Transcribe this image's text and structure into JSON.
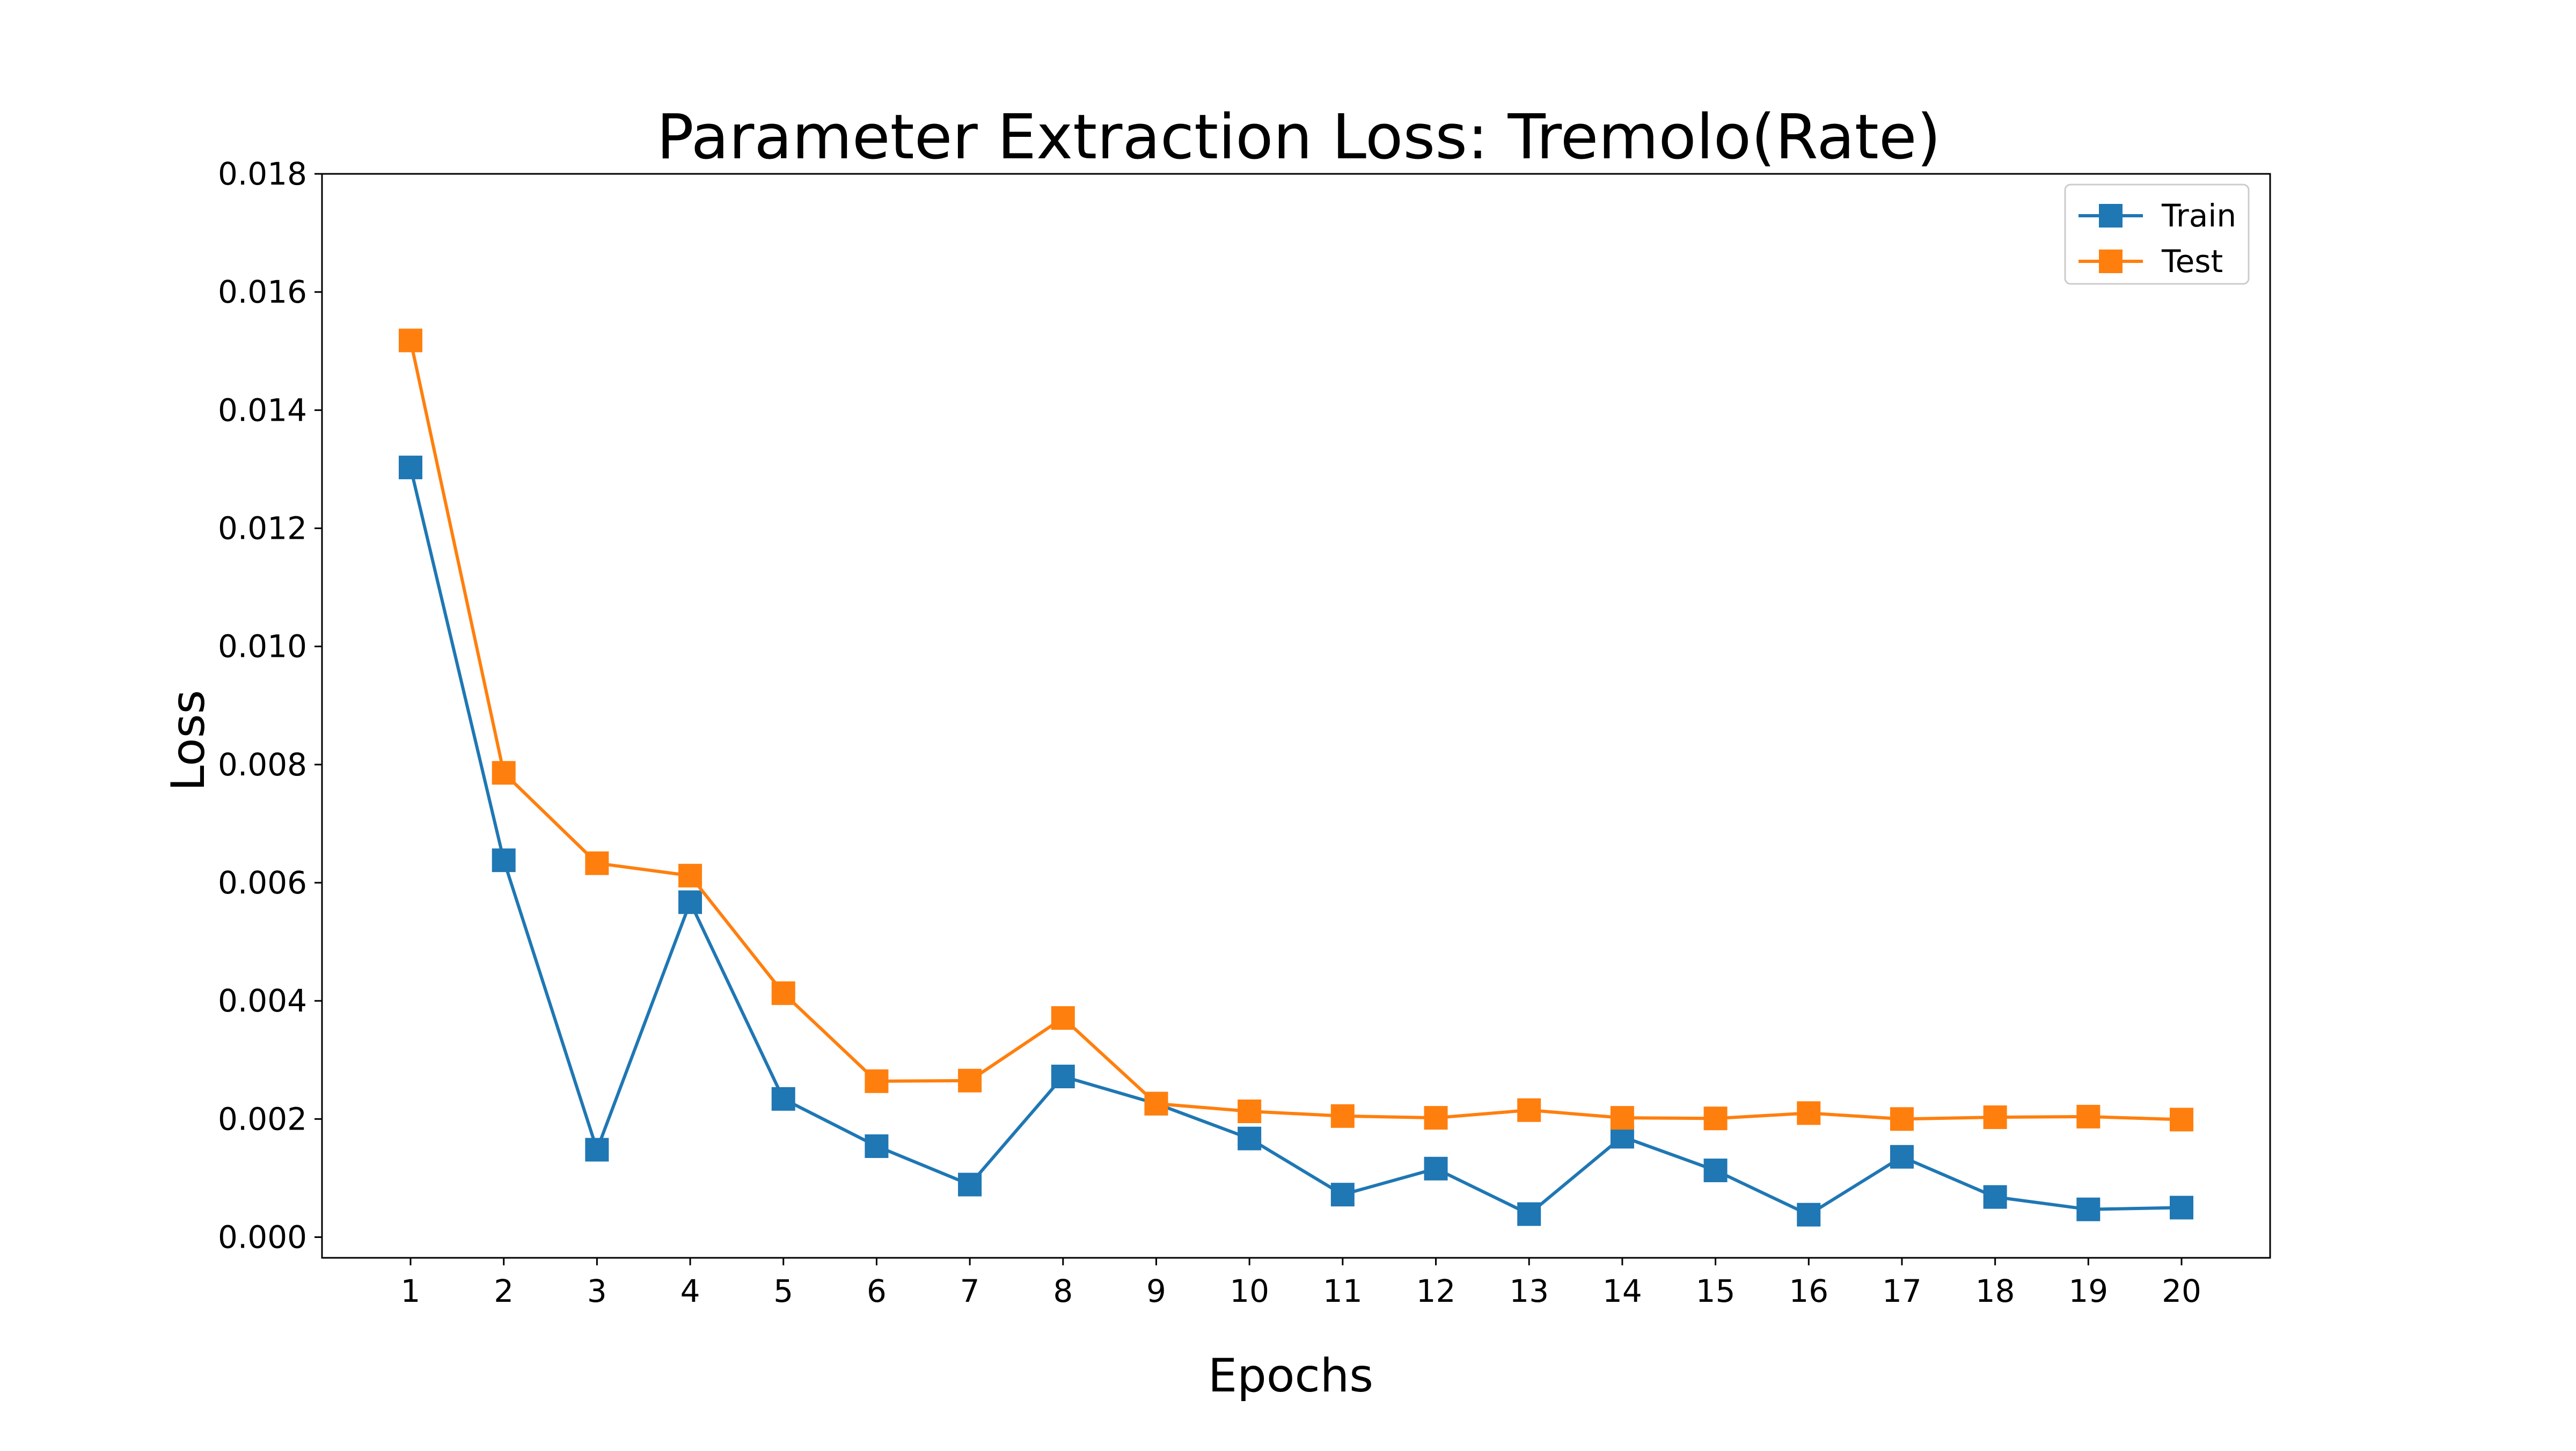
{
  "chart_data": {
    "type": "line",
    "title": "Parameter Extraction Loss: Tremolo(Rate)",
    "xlabel": "Epochs",
    "ylabel": "Loss",
    "x": [
      1,
      2,
      3,
      4,
      5,
      6,
      7,
      8,
      9,
      10,
      11,
      12,
      13,
      14,
      15,
      16,
      17,
      18,
      19,
      20
    ],
    "x_tick_labels": [
      "1",
      "2",
      "3",
      "4",
      "5",
      "6",
      "7",
      "8",
      "9",
      "10",
      "11",
      "12",
      "13",
      "14",
      "15",
      "16",
      "17",
      "18",
      "19",
      "20"
    ],
    "xlim": [
      0.05,
      20.95
    ],
    "ylim": [
      -0.00035,
      0.018
    ],
    "y_ticks": [
      0.0,
      0.002,
      0.004,
      0.006,
      0.008,
      0.01,
      0.012,
      0.014,
      0.016,
      0.018
    ],
    "y_tick_labels": [
      "0.000",
      "0.002",
      "0.004",
      "0.006",
      "0.008",
      "0.010",
      "0.012",
      "0.014",
      "0.016",
      "0.018"
    ],
    "grid": false,
    "legend_position": "top-right",
    "marker": "square",
    "series": [
      {
        "name": "Train",
        "color": "#1f77b4",
        "values": [
          0.01303,
          0.00638,
          0.00148,
          0.00567,
          0.00234,
          0.00154,
          0.00089,
          0.00272,
          0.00226,
          0.00167,
          0.00072,
          0.00116,
          0.00039,
          0.0017,
          0.00113,
          0.00038,
          0.00136,
          0.00068,
          0.00047,
          0.0005
        ]
      },
      {
        "name": "Test",
        "color": "#ff7f0e",
        "values": [
          0.01518,
          0.00786,
          0.00633,
          0.00612,
          0.00413,
          0.00264,
          0.00265,
          0.00371,
          0.00226,
          0.00213,
          0.00205,
          0.00202,
          0.00215,
          0.00202,
          0.00201,
          0.0021,
          0.002,
          0.00203,
          0.00204,
          0.00199
        ]
      }
    ]
  }
}
